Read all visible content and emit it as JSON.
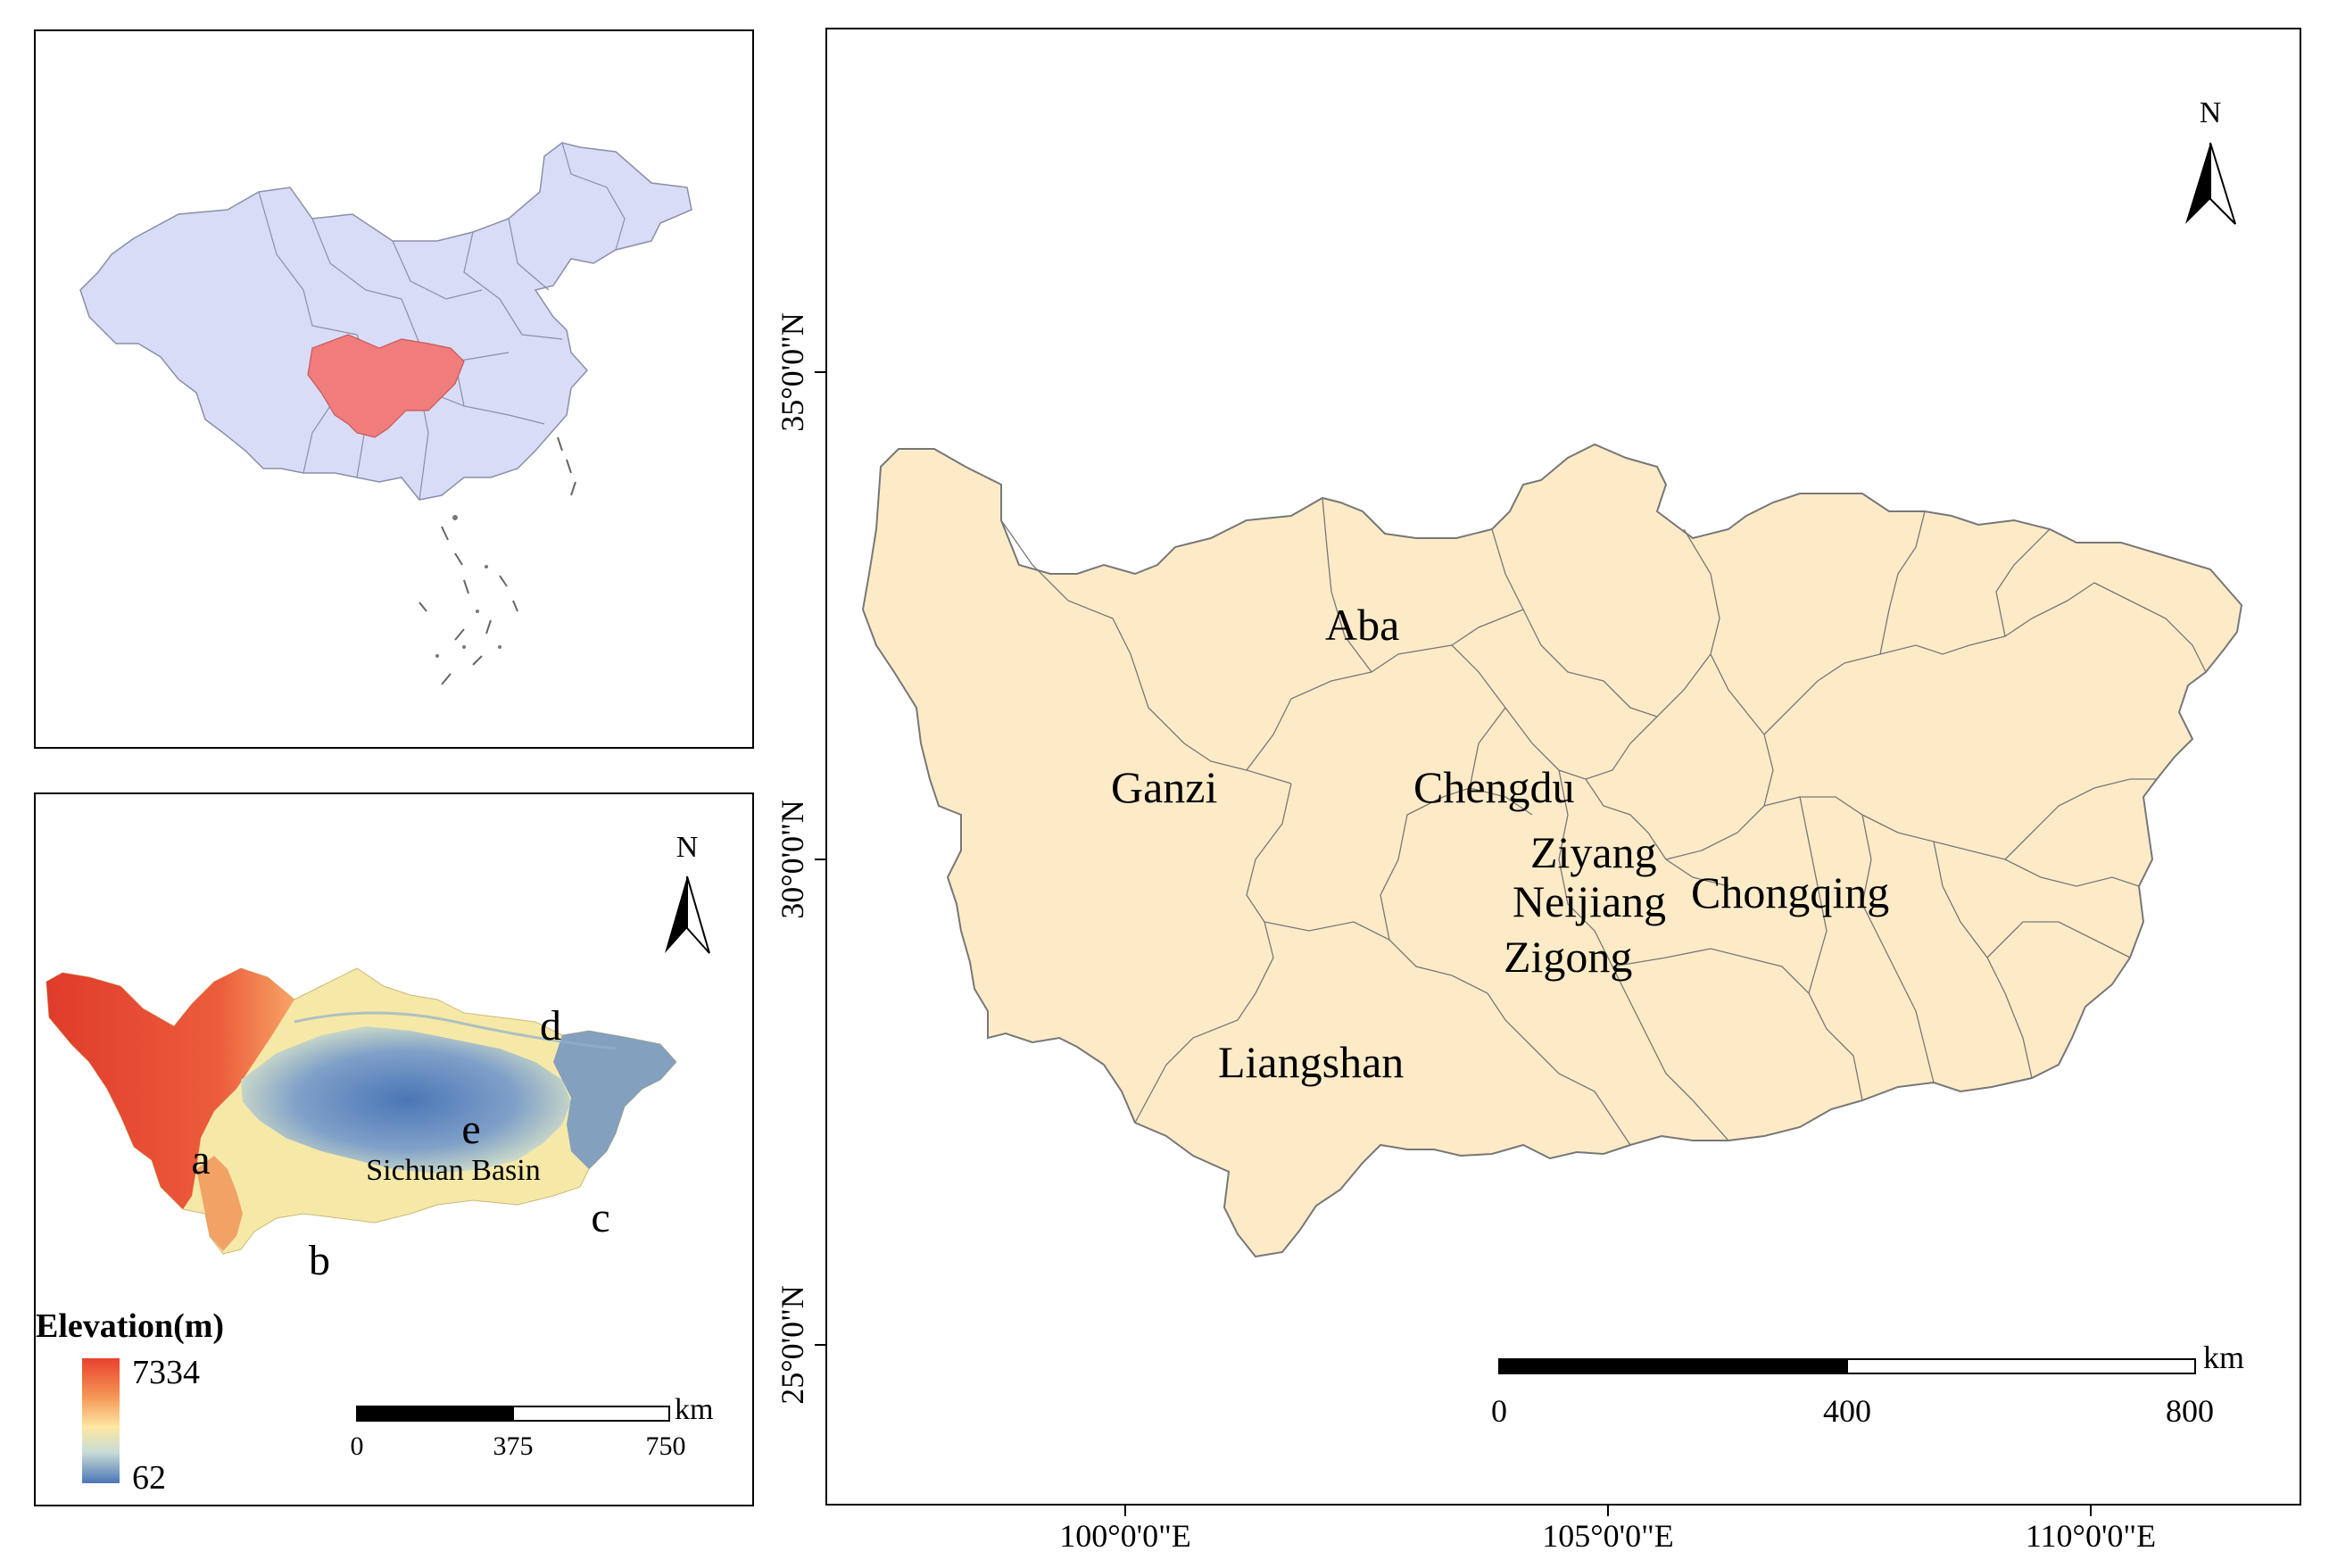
{
  "inset_elevation": {
    "north_label": "N",
    "region_labels": [
      "a",
      "b",
      "c",
      "d",
      "e"
    ],
    "basin_label": "Sichuan Basin",
    "legend": {
      "title": "Elevation(m)",
      "max": "7334",
      "min": "62",
      "colors": [
        "#e8412e",
        "#f59454",
        "#fde7a2",
        "#c9dcd6",
        "#4b76b6"
      ]
    },
    "scale": {
      "labels": [
        "0",
        "375",
        "750"
      ],
      "unit": "km"
    }
  },
  "main_map": {
    "north_label": "N",
    "cities": [
      "Aba",
      "Ganzi",
      "Chengdu",
      "Ziyang",
      "Neijiang",
      "Chongqing",
      "Zigong",
      "Liangshan"
    ],
    "scale": {
      "labels": [
        "0",
        "400",
        "800"
      ],
      "unit": "km"
    },
    "lat_labels": [
      "35°0'0\"N",
      "30°0'0\"N",
      "25°0'0\"N"
    ],
    "lon_labels": [
      "100°0'0\"E",
      "105°0'0\"E",
      "110°0'0\"E"
    ],
    "fill": "#fdebc8",
    "outline": "#777777"
  },
  "inset_china": {
    "china_fill": "#d9dcf6",
    "study_area_fill": "#f07c7c"
  }
}
